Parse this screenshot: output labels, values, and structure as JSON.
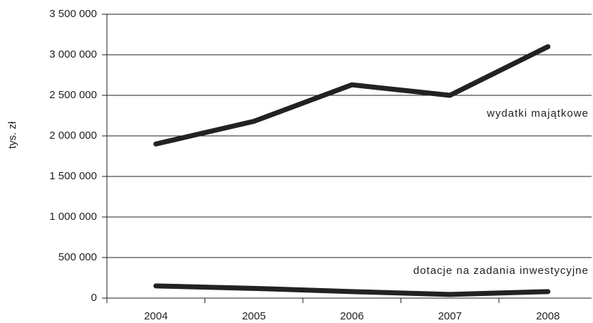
{
  "chart_data": {
    "type": "line",
    "y_label": "tys. zł",
    "categories": [
      "2004",
      "2005",
      "2006",
      "2007",
      "2008"
    ],
    "series": [
      {
        "name": "wydatki majątkowe",
        "color": "#222222",
        "values": [
          1900000,
          2180000,
          2630000,
          2500000,
          3100000
        ]
      },
      {
        "name": "dotacje na zadania inwestycyjne",
        "color": "#222222",
        "values": [
          150000,
          120000,
          80000,
          45000,
          80000
        ]
      }
    ],
    "ylim": [
      0,
      3500000
    ],
    "yticks": [
      0,
      {
        "value": 500000,
        "label": "500 000"
      },
      {
        "value": 1000000,
        "label": "1 000 000"
      },
      {
        "value": 1500000,
        "label": "1 500 000"
      },
      {
        "value": 2000000,
        "label": "2 000 000"
      },
      {
        "value": 2500000,
        "label": "2 500 000"
      },
      {
        "value": 3000000,
        "label": "3 000 000"
      },
      {
        "value": 3500000,
        "label": "3 500 000"
      }
    ],
    "grid": true
  }
}
